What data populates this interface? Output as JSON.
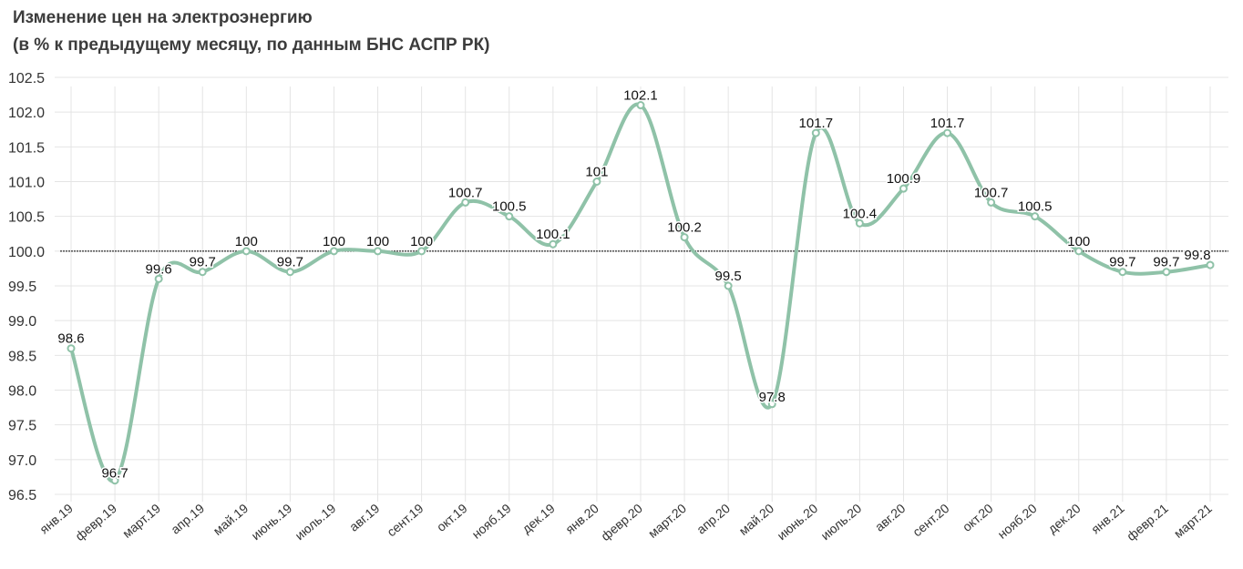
{
  "title": "Изменение цен на электроэнергию",
  "subtitle": "(в % к предыдущему месяцу, по данным БНС АСПР РК)",
  "colors": {
    "line": "#8fc2a8",
    "grid": "#e4e4e4",
    "baseline": "#000000",
    "text": "#333333"
  },
  "chart_data": {
    "type": "line",
    "title": "Изменение цен на электроэнергию",
    "subtitle": "(в % к предыдущему месяцу, по данным БНС АСПР РК)",
    "categories": [
      "янв.19",
      "февр.19",
      "март.19",
      "апр.19",
      "май.19",
      "июнь.19",
      "июль.19",
      "авг.19",
      "сент.19",
      "окт.19",
      "нояб.19",
      "дек.19",
      "янв.20",
      "февр.20",
      "март.20",
      "апр.20",
      "май.20",
      "июнь.20",
      "июль.20",
      "авг.20",
      "сент.20",
      "окт.20",
      "нояб.20",
      "дек.20",
      "янв.21",
      "февр.21",
      "март.21"
    ],
    "values": [
      98.6,
      96.7,
      99.6,
      99.7,
      100,
      99.7,
      100,
      100,
      100,
      100.7,
      100.5,
      100.1,
      101,
      102.1,
      100.2,
      99.5,
      97.8,
      101.7,
      100.4,
      100.9,
      101.7,
      100.7,
      100.5,
      100,
      99.7,
      99.7,
      99.8
    ],
    "data_labels": [
      "98.6",
      "96.7",
      "99.6",
      "99.7",
      "100",
      "99.7",
      "100",
      "100",
      "100",
      "100.7",
      "100.5",
      "100.1",
      "101",
      "102.1",
      "100.2",
      "99.5",
      "97.8",
      "101.7",
      "100.4",
      "100.9",
      "101.7",
      "100.7",
      "100.5",
      "100",
      "99.7",
      "99.7",
      "99.8"
    ],
    "yticks": [
      "96.5",
      "97.0",
      "97.5",
      "98.0",
      "98.5",
      "99.0",
      "99.5",
      "100.0",
      "100.5",
      "101.0",
      "101.5",
      "102.0",
      "102.5"
    ],
    "ylim": [
      96.5,
      102.5
    ],
    "reference_line": 100,
    "grid": true,
    "smooth": true,
    "legend": "none"
  }
}
